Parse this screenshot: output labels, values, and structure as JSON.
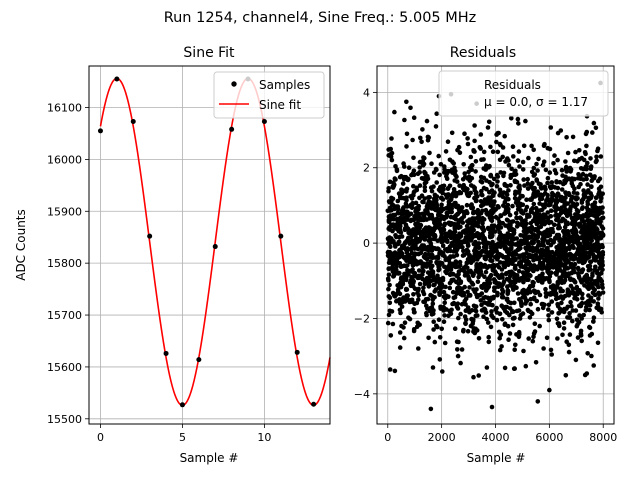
{
  "suptitle": "Run 1254, channel4, Sine Freq.: 5.005 MHz",
  "chart_data": [
    {
      "type": "line",
      "title": "Sine Fit",
      "xlabel": "Sample #",
      "ylabel": "ADC Counts",
      "xlim": [
        -0.7,
        14.0
      ],
      "ylim": [
        15490,
        16180
      ],
      "xticks": [
        0,
        5,
        10
      ],
      "yticks": [
        15500,
        15600,
        15700,
        15800,
        15900,
        16000,
        16100
      ],
      "grid": true,
      "legend": {
        "placement": "top-right",
        "entries": [
          "Samples",
          "Sine fit"
        ]
      },
      "series": [
        {
          "name": "Samples",
          "kind": "scatter",
          "color": "#000000",
          "x": [
            0,
            1,
            2,
            3,
            4,
            5,
            6,
            7,
            8,
            9,
            10,
            11,
            12,
            13
          ],
          "y": [
            16055,
            16155,
            16073,
            15852,
            15626,
            15527,
            15614,
            15832,
            16058,
            16155,
            16073,
            15852,
            15628,
            15528
          ]
        },
        {
          "name": "Sine fit",
          "kind": "line",
          "color": "#ff0000",
          "fit": {
            "offset": 15841,
            "amplitude": 315,
            "period": 8.0,
            "phase_peak_x": 1.0,
            "x_range": [
              0,
              14
            ]
          }
        }
      ]
    },
    {
      "type": "scatter",
      "title": "Residuals",
      "xlabel": "Sample #",
      "ylabel": "",
      "xlim": [
        -400,
        8400
      ],
      "ylim": [
        -4.8,
        4.7
      ],
      "xticks": [
        0,
        2000,
        4000,
        6000,
        8000
      ],
      "yticks": [
        -4,
        -2,
        0,
        2,
        4
      ],
      "grid": true,
      "legend": {
        "placement": "top-right",
        "entries": [
          "Residuals"
        ],
        "stats_text": "μ = 0.0, σ = 1.17"
      },
      "series": [
        {
          "name": "Residuals",
          "color": "#000000",
          "x_range": [
            0,
            8000
          ],
          "mean": 0.0,
          "std": 1.17,
          "y_range": [
            -4.4,
            4.25
          ],
          "highlighted_points": [
            [
              690,
              3.75
            ],
            [
              1600,
              -4.4
            ],
            [
              3870,
              -4.35
            ],
            [
              5570,
              -4.2
            ],
            [
              7900,
              4.25
            ],
            [
              1900,
              3.9
            ],
            [
              2350,
              3.95
            ],
            [
              6000,
              -3.9
            ],
            [
              3300,
              3.7
            ],
            [
              7330,
              -3.5
            ]
          ]
        }
      ]
    }
  ]
}
